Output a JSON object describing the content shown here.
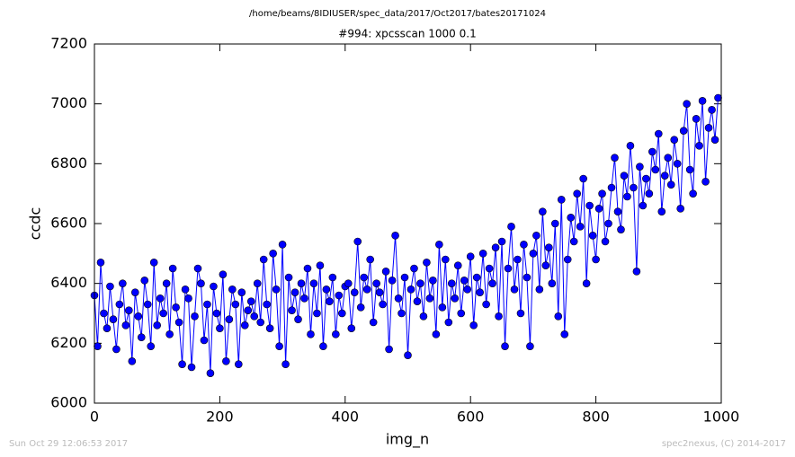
{
  "chart_data": {
    "type": "line",
    "suptitle": "/home/beams/8IDIUSER/spec_data/2017/Oct2017/bates20171024",
    "title": "#994: xpcsscan 1000 0.1",
    "xlabel": "img_n",
    "ylabel": "ccdc",
    "footer_left": "Sun Oct 29 12:06:53 2017",
    "footer_right": "spec2nexus, (C) 2014-2017",
    "xlim": [
      0,
      1000
    ],
    "xticks": [
      0,
      200,
      400,
      600,
      800,
      1000
    ],
    "ylim": [
      6000,
      7200
    ],
    "yticks": [
      6000,
      6200,
      6400,
      6600,
      6800,
      7000,
      7200
    ],
    "grid": false,
    "x": [
      0,
      5,
      10,
      15,
      20,
      25,
      30,
      35,
      40,
      45,
      50,
      55,
      60,
      65,
      70,
      75,
      80,
      85,
      90,
      95,
      100,
      105,
      110,
      115,
      120,
      125,
      130,
      135,
      140,
      145,
      150,
      155,
      160,
      165,
      170,
      175,
      180,
      185,
      190,
      195,
      200,
      205,
      210,
      215,
      220,
      225,
      230,
      235,
      240,
      245,
      250,
      255,
      260,
      265,
      270,
      275,
      280,
      285,
      290,
      295,
      300,
      305,
      310,
      315,
      320,
      325,
      330,
      335,
      340,
      345,
      350,
      355,
      360,
      365,
      370,
      375,
      380,
      385,
      390,
      395,
      400,
      405,
      410,
      415,
      420,
      425,
      430,
      435,
      440,
      445,
      450,
      455,
      460,
      465,
      470,
      475,
      480,
      485,
      490,
      495,
      500,
      505,
      510,
      515,
      520,
      525,
      530,
      535,
      540,
      545,
      550,
      555,
      560,
      565,
      570,
      575,
      580,
      585,
      590,
      595,
      600,
      605,
      610,
      615,
      620,
      625,
      630,
      635,
      640,
      645,
      650,
      655,
      660,
      665,
      670,
      675,
      680,
      685,
      690,
      695,
      700,
      705,
      710,
      715,
      720,
      725,
      730,
      735,
      740,
      745,
      750,
      755,
      760,
      765,
      770,
      775,
      780,
      785,
      790,
      795,
      800,
      805,
      810,
      815,
      820,
      825,
      830,
      835,
      840,
      845,
      850,
      855,
      860,
      865,
      870,
      875,
      880,
      885,
      890,
      895,
      900,
      905,
      910,
      915,
      920,
      925,
      930,
      935,
      940,
      945,
      950,
      955,
      960,
      965,
      970,
      975,
      980,
      985,
      990,
      995
    ],
    "series": [
      {
        "color": "#0000ff",
        "values": [
          6360,
          6190,
          6470,
          6300,
          6250,
          6390,
          6280,
          6180,
          6330,
          6400,
          6260,
          6310,
          6140,
          6370,
          6290,
          6220,
          6410,
          6330,
          6190,
          6470,
          6260,
          6350,
          6300,
          6400,
          6230,
          6450,
          6320,
          6270,
          6130,
          6380,
          6350,
          6120,
          6290,
          6450,
          6400,
          6210,
          6330,
          6100,
          6390,
          6300,
          6250,
          6430,
          6140,
          6280,
          6380,
          6330,
          6130,
          6370,
          6260,
          6310,
          6340,
          6290,
          6400,
          6270,
          6480,
          6330,
          6250,
          6500,
          6380,
          6190,
          6530,
          6130,
          6420,
          6310,
          6370,
          6280,
          6400,
          6350,
          6450,
          6230,
          6400,
          6300,
          6460,
          6190,
          6380,
          6340,
          6420,
          6230,
          6360,
          6300,
          6390,
          6400,
          6250,
          6370,
          6540,
          6320,
          6420,
          6380,
          6480,
          6270,
          6400,
          6370,
          6330,
          6440,
          6180,
          6410,
          6560,
          6350,
          6300,
          6420,
          6160,
          6380,
          6450,
          6340,
          6400,
          6290,
          6470,
          6350,
          6410,
          6230,
          6530,
          6320,
          6480,
          6270,
          6400,
          6350,
          6460,
          6300,
          6410,
          6380,
          6490,
          6260,
          6420,
          6370,
          6500,
          6330,
          6450,
          6400,
          6520,
          6290,
          6540,
          6190,
          6450,
          6590,
          6380,
          6480,
          6300,
          6530,
          6420,
          6190,
          6500,
          6560,
          6380,
          6640,
          6460,
          6520,
          6400,
          6600,
          6290,
          6680,
          6230,
          6480,
          6620,
          6540,
          6700,
          6590,
          6750,
          6400,
          6660,
          6560,
          6480,
          6650,
          6700,
          6540,
          6600,
          6720,
          6820,
          6640,
          6580,
          6760,
          6690,
          6860,
          6720,
          6440,
          6790,
          6660,
          6750,
          6700,
          6840,
          6780,
          6900,
          6640,
          6760,
          6820,
          6730,
          6880,
          6800,
          6650,
          6910,
          7000,
          6780,
          6700,
          6950,
          6860,
          7010,
          6740,
          6920,
          6980,
          6880,
          7020
        ]
      }
    ]
  }
}
